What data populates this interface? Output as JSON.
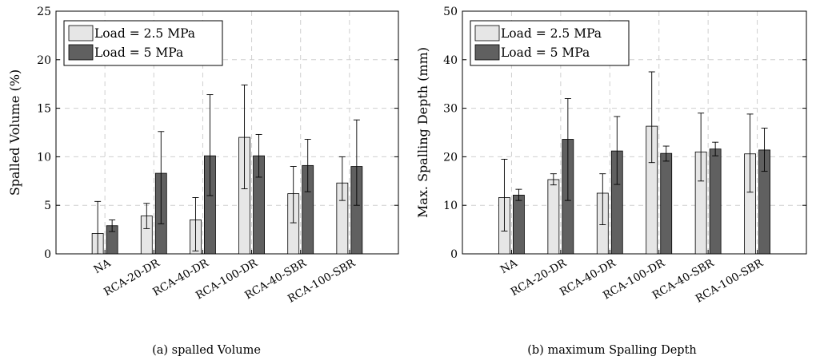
{
  "colors": {
    "load_low": "#e6e6e6",
    "load_high": "#606060",
    "grid": "#cfcfcf",
    "axis": "#000000"
  },
  "chart_data": [
    {
      "id": "a",
      "type": "bar",
      "caption": "(a) spalled Volume",
      "ylabel": "Spalled Volume (%)",
      "ylim": [
        0,
        25
      ],
      "yticks": [
        0,
        5,
        10,
        15,
        20,
        25
      ],
      "grid": true,
      "legend_position": "top-left",
      "categories": [
        "NA",
        "RCA-20-DR",
        "RCA-40-DR",
        "RCA-100-DR",
        "RCA-40-SBR",
        "RCA-100-SBR"
      ],
      "series": [
        {
          "name": "Load = 2.5 MPa",
          "color": "#e6e6e6",
          "values": [
            2.1,
            3.9,
            3.5,
            12.0,
            6.2,
            7.3
          ],
          "err_low": [
            0.0,
            2.6,
            0.3,
            6.7,
            3.2,
            5.5
          ],
          "err_high": [
            5.4,
            5.2,
            5.8,
            17.4,
            9.0,
            10.0
          ]
        },
        {
          "name": "Load = 5 MPa",
          "color": "#606060",
          "values": [
            2.9,
            8.3,
            10.1,
            10.1,
            9.1,
            9.0
          ],
          "err_low": [
            2.3,
            3.1,
            6.0,
            7.9,
            6.4,
            5.0
          ],
          "err_high": [
            3.5,
            12.6,
            16.4,
            12.3,
            11.8,
            13.8
          ]
        }
      ]
    },
    {
      "id": "b",
      "type": "bar",
      "caption": "(b) maximum Spalling Depth",
      "ylabel": "Max. Spalling Depth (mm)",
      "ylim": [
        0,
        50
      ],
      "yticks": [
        0,
        10,
        20,
        30,
        40,
        50
      ],
      "grid": true,
      "legend_position": "top-left",
      "categories": [
        "NA",
        "RCA-20-DR",
        "RCA-40-DR",
        "RCA-100-DR",
        "RCA-40-SBR",
        "RCA-100-SBR"
      ],
      "series": [
        {
          "name": "Load = 2.5 MPa",
          "color": "#e6e6e6",
          "values": [
            11.6,
            15.3,
            12.5,
            26.3,
            21.0,
            20.6
          ],
          "err_low": [
            4.7,
            14.2,
            6.0,
            18.8,
            15.0,
            12.7
          ],
          "err_high": [
            19.5,
            16.5,
            16.5,
            37.5,
            29.0,
            28.8
          ]
        },
        {
          "name": "Load = 5 MPa",
          "color": "#606060",
          "values": [
            12.1,
            23.6,
            21.2,
            20.7,
            21.6,
            21.4
          ],
          "err_low": [
            11.0,
            11.0,
            14.3,
            19.1,
            20.2,
            17.0
          ],
          "err_high": [
            13.3,
            32.0,
            28.3,
            22.2,
            23.0,
            25.9
          ]
        }
      ]
    }
  ]
}
